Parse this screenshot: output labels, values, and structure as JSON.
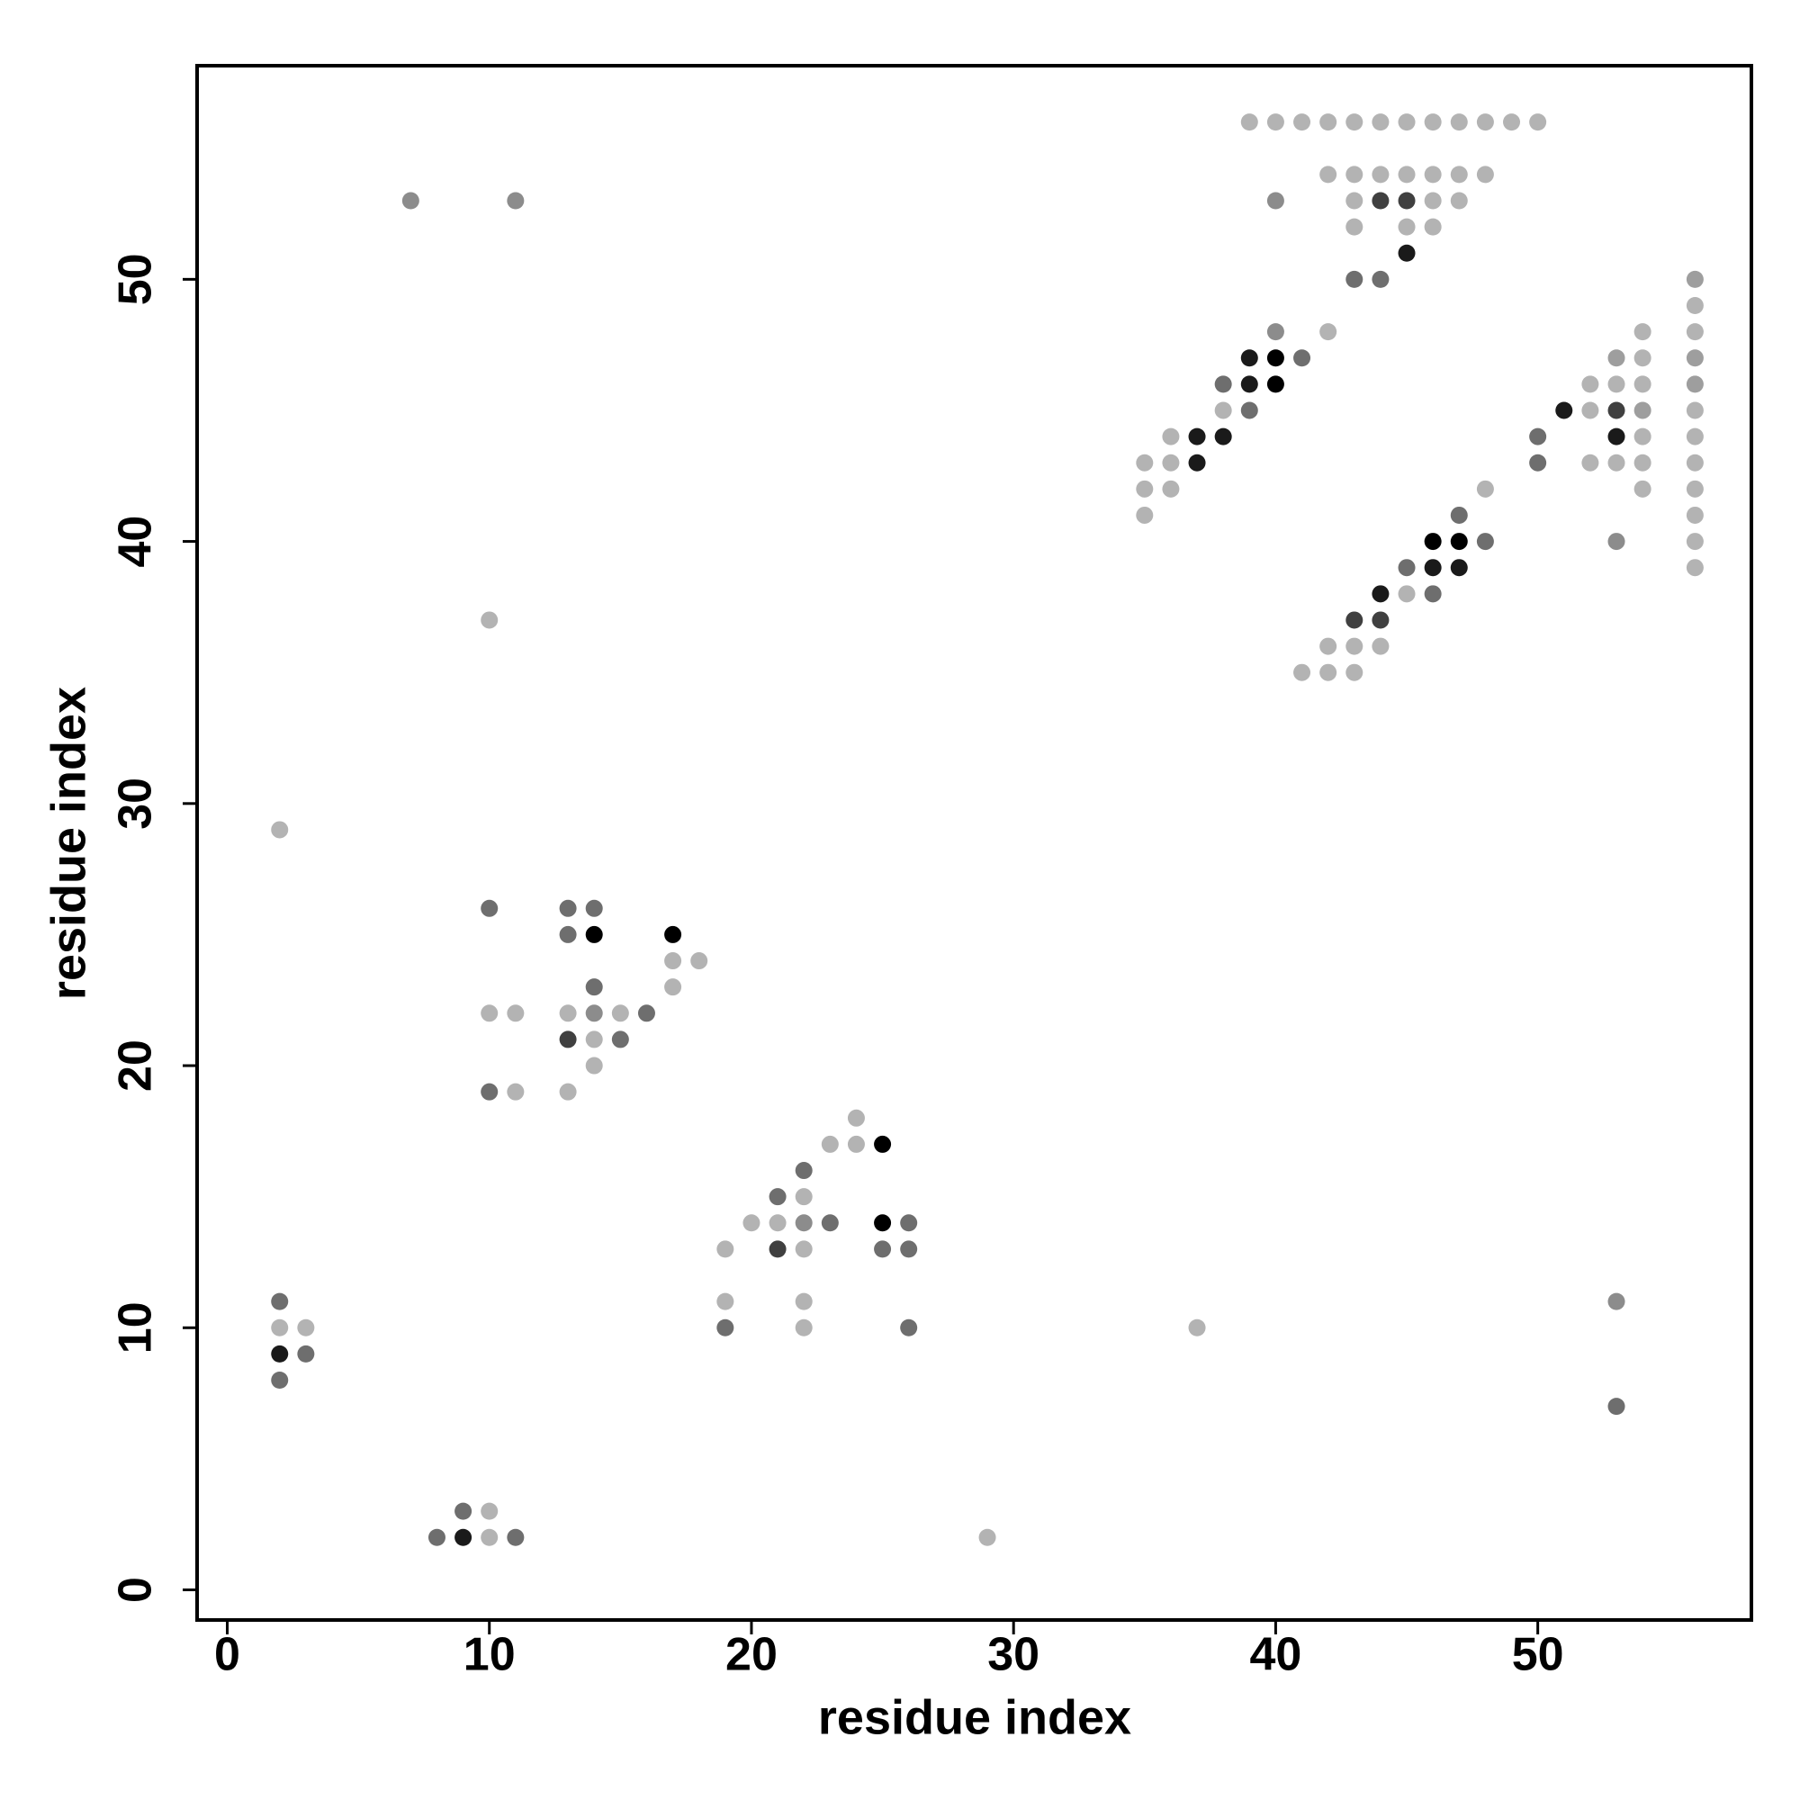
{
  "chart_data": {
    "type": "scatter",
    "xlabel": "residue index",
    "ylabel": "residue index",
    "xlim": [
      -1.15,
      58.15
    ],
    "ylim": [
      -1.15,
      58.15
    ],
    "xticks": [
      0,
      10,
      20,
      30,
      40,
      50
    ],
    "yticks": [
      0,
      10,
      20,
      30,
      40,
      50
    ],
    "grid": false,
    "x": [
      39,
      40,
      41,
      42,
      43,
      44,
      45,
      46,
      47,
      48,
      49,
      50,
      42,
      43,
      44,
      45,
      46,
      47,
      48,
      7,
      11,
      40,
      43,
      44,
      45,
      46,
      47,
      43,
      45,
      46,
      45,
      43,
      44,
      56,
      56,
      40,
      42,
      54,
      56,
      39,
      40,
      41,
      53,
      54,
      56,
      38,
      39,
      40,
      52,
      53,
      54,
      56,
      38,
      39,
      51,
      52,
      53,
      54,
      56,
      36,
      37,
      38,
      50,
      53,
      54,
      56,
      35,
      36,
      37,
      50,
      52,
      53,
      54,
      56,
      35,
      36,
      48,
      54,
      56,
      35,
      47,
      56,
      46,
      47,
      48,
      53,
      56,
      45,
      46,
      47,
      56,
      44,
      45,
      46,
      10,
      43,
      44,
      42,
      43,
      44,
      41,
      42,
      43,
      2,
      10,
      13,
      14,
      13,
      14,
      17,
      17,
      18,
      14,
      17,
      10,
      11,
      13,
      14,
      15,
      16,
      13,
      14,
      15,
      14,
      10,
      11,
      13,
      24,
      23,
      24,
      25,
      22,
      21,
      22,
      20,
      21,
      22,
      23,
      25,
      26,
      19,
      21,
      22,
      25,
      26,
      2,
      19,
      22,
      53,
      2,
      3,
      19,
      22,
      26,
      37,
      2,
      3,
      2,
      53,
      9,
      10,
      8,
      9,
      10,
      11,
      29
    ],
    "values": [
      56,
      56,
      56,
      56,
      56,
      56,
      56,
      56,
      56,
      56,
      56,
      56,
      54,
      54,
      54,
      54,
      54,
      54,
      54,
      53,
      53,
      53,
      53,
      53,
      53,
      53,
      53,
      52,
      52,
      52,
      51,
      50,
      50,
      50,
      49,
      48,
      48,
      48,
      48,
      47,
      47,
      47,
      47,
      47,
      47,
      46,
      46,
      46,
      46,
      46,
      46,
      46,
      45,
      45,
      45,
      45,
      45,
      45,
      45,
      44,
      44,
      44,
      44,
      44,
      44,
      44,
      43,
      43,
      43,
      43,
      43,
      43,
      43,
      43,
      42,
      42,
      42,
      42,
      42,
      41,
      41,
      41,
      40,
      40,
      40,
      40,
      40,
      39,
      39,
      39,
      39,
      38,
      38,
      38,
      37,
      37,
      37,
      36,
      36,
      36,
      35,
      35,
      35,
      29,
      26,
      26,
      26,
      25,
      25,
      25,
      24,
      24,
      23,
      23,
      22,
      22,
      22,
      22,
      22,
      22,
      21,
      21,
      21,
      20,
      19,
      19,
      19,
      18,
      17,
      17,
      17,
      16,
      15,
      15,
      14,
      14,
      14,
      14,
      14,
      14,
      13,
      13,
      13,
      13,
      13,
      11,
      11,
      11,
      11,
      10,
      10,
      10,
      10,
      10,
      10,
      9,
      9,
      8,
      7,
      3,
      3,
      2,
      2,
      2,
      2,
      2
    ],
    "colors": [
      "#b3b3b3",
      "#b3b3b3",
      "#b3b3b3",
      "#b3b3b3",
      "#b3b3b3",
      "#b3b3b3",
      "#b3b3b3",
      "#b3b3b3",
      "#b3b3b3",
      "#b3b3b3",
      "#b3b3b3",
      "#b3b3b3",
      "#b3b3b3",
      "#b3b3b3",
      "#b3b3b3",
      "#b3b3b3",
      "#b3b3b3",
      "#b3b3b3",
      "#b3b3b3",
      "#8c8c8c",
      "#8c8c8c",
      "#8c8c8c",
      "#b3b3b3",
      "#404040",
      "#404040",
      "#b3b3b3",
      "#b3b3b3",
      "#b3b3b3",
      "#b3b3b3",
      "#b3b3b3",
      "#1a1a1a",
      "#6e6e6e",
      "#6e6e6e",
      "#9e9e9e",
      "#b3b3b3",
      "#8c8c8c",
      "#b3b3b3",
      "#b3b3b3",
      "#b3b3b3",
      "#1a1a1a",
      "#000000",
      "#6e6e6e",
      "#9e9e9e",
      "#b3b3b3",
      "#9e9e9e",
      "#6e6e6e",
      "#1a1a1a",
      "#000000",
      "#b3b3b3",
      "#b3b3b3",
      "#b3b3b3",
      "#9e9e9e",
      "#b3b3b3",
      "#6e6e6e",
      "#1a1a1a",
      "#b3b3b3",
      "#404040",
      "#9e9e9e",
      "#b3b3b3",
      "#b3b3b3",
      "#1a1a1a",
      "#1a1a1a",
      "#6e6e6e",
      "#1a1a1a",
      "#b3b3b3",
      "#b3b3b3",
      "#b3b3b3",
      "#b3b3b3",
      "#1a1a1a",
      "#6e6e6e",
      "#b3b3b3",
      "#b3b3b3",
      "#b3b3b3",
      "#b3b3b3",
      "#b3b3b3",
      "#b3b3b3",
      "#b3b3b3",
      "#b3b3b3",
      "#b3b3b3",
      "#b3b3b3",
      "#6e6e6e",
      "#b3b3b3",
      "#000000",
      "#000000",
      "#6e6e6e",
      "#8c8c8c",
      "#b3b3b3",
      "#6e6e6e",
      "#1a1a1a",
      "#1a1a1a",
      "#b3b3b3",
      "#1a1a1a",
      "#b3b3b3",
      "#6e6e6e",
      "#b3b3b3",
      "#404040",
      "#404040",
      "#b3b3b3",
      "#b3b3b3",
      "#b3b3b3",
      "#b3b3b3",
      "#b3b3b3",
      "#b3b3b3",
      "#b3b3b3",
      "#6e6e6e",
      "#6e6e6e",
      "#6e6e6e",
      "#6e6e6e",
      "#000000",
      "#000000",
      "#b3b3b3",
      "#b3b3b3",
      "#6e6e6e",
      "#b3b3b3",
      "#b3b3b3",
      "#b3b3b3",
      "#b3b3b3",
      "#8c8c8c",
      "#b3b3b3",
      "#6e6e6e",
      "#404040",
      "#b3b3b3",
      "#6e6e6e",
      "#b3b3b3",
      "#6e6e6e",
      "#b3b3b3",
      "#b3b3b3",
      "#b3b3b3",
      "#b3b3b3",
      "#b3b3b3",
      "#000000",
      "#6e6e6e",
      "#6e6e6e",
      "#b3b3b3",
      "#b3b3b3",
      "#b3b3b3",
      "#8c8c8c",
      "#6e6e6e",
      "#000000",
      "#6e6e6e",
      "#b3b3b3",
      "#404040",
      "#b3b3b3",
      "#6e6e6e",
      "#6e6e6e",
      "#6e6e6e",
      "#b3b3b3",
      "#b3b3b3",
      "#8c8c8c",
      "#b3b3b3",
      "#b3b3b3",
      "#6e6e6e",
      "#b3b3b3",
      "#6e6e6e",
      "#b3b3b3",
      "#1a1a1a",
      "#6e6e6e",
      "#6e6e6e",
      "#6e6e6e",
      "#6e6e6e",
      "#b3b3b3",
      "#6e6e6e",
      "#1a1a1a",
      "#b3b3b3",
      "#6e6e6e",
      "#b3b3b3"
    ]
  }
}
